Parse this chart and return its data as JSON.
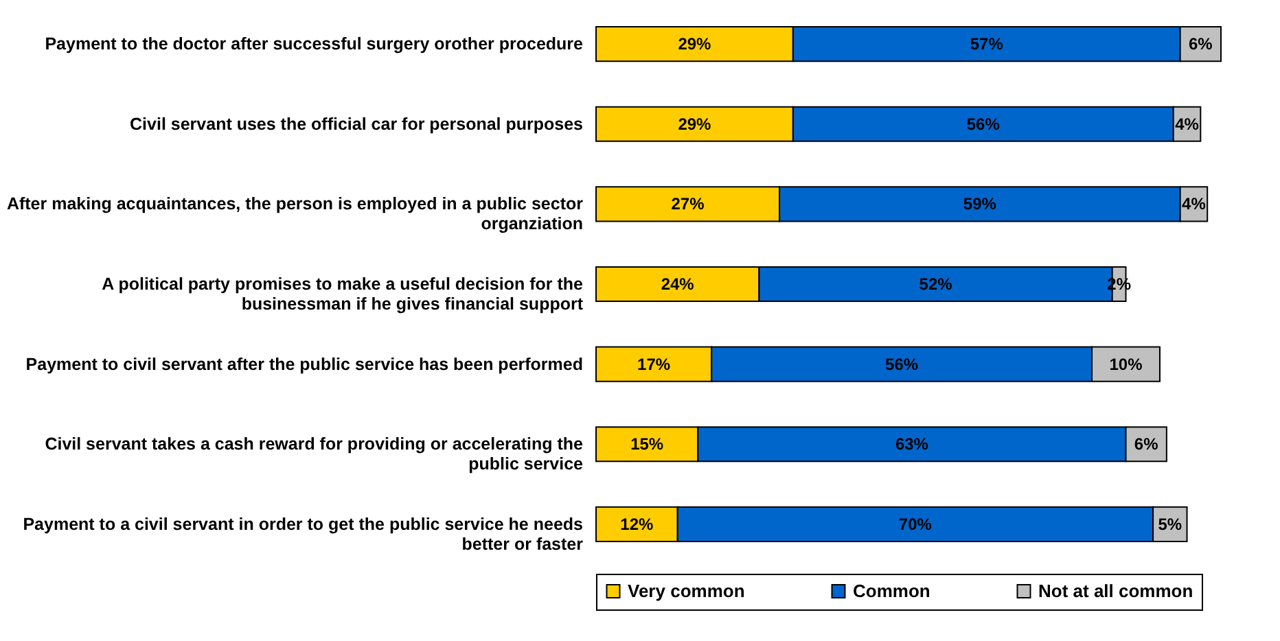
{
  "chart_data": {
    "type": "bar",
    "orientation": "horizontal",
    "stacked": true,
    "legend": "bottom",
    "grid": false,
    "categories": [
      "Payment to the doctor after successful surgery orother procedure",
      "Civil servant uses the official car for personal purposes",
      "After making acquaintances, the person is employed in a public sector organziation",
      "A political party promises to make a useful decision for the businessman if he gives financial support",
      "Payment to civil servant after the public service has been performed",
      "Civil servant takes a cash reward for providing or accelerating the public service",
      "Payment to a civil servant in order to get the public service he needs better or faster"
    ],
    "series": [
      {
        "name": "Very common",
        "color": "#ffcc00",
        "values": [
          29,
          29,
          27,
          24,
          17,
          15,
          12
        ],
        "value_labels": [
          "29%",
          "29%",
          "27%",
          "24%",
          "17%",
          "15%",
          "12%"
        ]
      },
      {
        "name": "Common",
        "color": "#0066cc",
        "values": [
          57,
          56,
          59,
          52,
          56,
          63,
          70
        ],
        "value_labels": [
          "57%",
          "56%",
          "59%",
          "52%",
          "56%",
          "63%",
          "70%"
        ]
      },
      {
        "name": "Not at all common",
        "color": "#c0c0c0",
        "values": [
          6,
          4,
          4,
          2,
          10,
          6,
          5
        ],
        "value_labels": [
          "6%",
          "4%",
          "4%",
          "2%",
          "10%",
          "6%",
          "5%"
        ]
      }
    ]
  }
}
